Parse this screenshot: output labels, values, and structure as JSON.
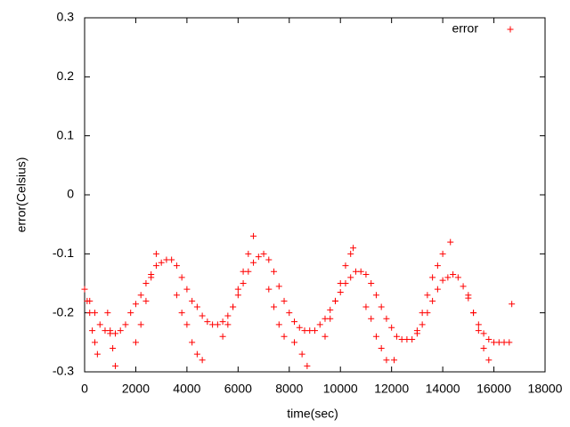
{
  "chart_data": {
    "type": "scatter",
    "xlabel": "time(sec)",
    "ylabel": "error(Celsius)",
    "xlim": [
      0,
      18000
    ],
    "ylim": [
      -0.3,
      0.3
    ],
    "xticks": [
      0,
      2000,
      4000,
      6000,
      8000,
      10000,
      12000,
      14000,
      16000,
      18000
    ],
    "yticks": [
      -0.3,
      -0.2,
      -0.1,
      0,
      0.1,
      0.2,
      0.3
    ],
    "legend": "top-right",
    "x": [
      0,
      200,
      400,
      600,
      800,
      1000,
      1200,
      1400,
      1600,
      1800,
      2000,
      2200,
      2400,
      2600,
      2800,
      3000,
      3200,
      3400,
      3600,
      3800,
      4000,
      4200,
      4400,
      4600,
      4800,
      5000,
      5200,
      5400,
      5600,
      5800,
      6000,
      6200,
      6400,
      6600,
      6800,
      7000,
      7200,
      7400,
      7600,
      7800,
      8000,
      8200,
      8400,
      8600,
      8800,
      9000,
      9200,
      9400,
      9600,
      9800,
      10000,
      10200,
      10400,
      10600,
      10800,
      11000,
      11200,
      11400,
      11600,
      11800,
      12000,
      12200,
      12400,
      12600,
      12800,
      13000,
      13200,
      13400,
      13600,
      13800,
      14000,
      14200,
      14400,
      14600,
      14800,
      15000,
      15200,
      15400,
      15600,
      15800,
      16000,
      16200,
      16400,
      16600,
      100,
      200,
      300,
      400,
      500,
      900,
      1000,
      1100,
      1200,
      2000,
      2200,
      2400,
      2600,
      2800,
      3600,
      3800,
      4000,
      4200,
      4400,
      4600,
      5400,
      5600,
      5800,
      6000,
      6200,
      6400,
      6600,
      7200,
      7400,
      7600,
      7800,
      8200,
      8500,
      8700,
      9400,
      9600,
      9800,
      10000,
      10200,
      10400,
      10500,
      11000,
      11200,
      11400,
      11600,
      11800,
      12100,
      13000,
      13200,
      13400,
      13600,
      13800,
      14000,
      14300,
      15000,
      15200,
      15400,
      15600,
      15800,
      16700
    ],
    "series": [
      {
        "name": "error",
        "color": "#ff0000",
        "values": [
          -0.16,
          -0.18,
          -0.2,
          -0.22,
          -0.23,
          -0.235,
          -0.235,
          -0.23,
          -0.22,
          -0.2,
          -0.185,
          -0.17,
          -0.15,
          -0.135,
          -0.12,
          -0.115,
          -0.11,
          -0.11,
          -0.12,
          -0.14,
          -0.16,
          -0.18,
          -0.19,
          -0.205,
          -0.215,
          -0.22,
          -0.22,
          -0.215,
          -0.205,
          -0.19,
          -0.17,
          -0.15,
          -0.13,
          -0.115,
          -0.105,
          -0.1,
          -0.11,
          -0.13,
          -0.155,
          -0.18,
          -0.2,
          -0.215,
          -0.225,
          -0.23,
          -0.23,
          -0.23,
          -0.22,
          -0.21,
          -0.195,
          -0.18,
          -0.165,
          -0.15,
          -0.14,
          -0.13,
          -0.13,
          -0.135,
          -0.15,
          -0.17,
          -0.19,
          -0.21,
          -0.225,
          -0.24,
          -0.245,
          -0.245,
          -0.245,
          -0.235,
          -0.22,
          -0.2,
          -0.18,
          -0.16,
          -0.145,
          -0.14,
          -0.135,
          -0.14,
          -0.155,
          -0.175,
          -0.2,
          -0.22,
          -0.235,
          -0.245,
          -0.25,
          -0.25,
          -0.25,
          -0.25,
          -0.18,
          -0.2,
          -0.23,
          -0.25,
          -0.27,
          -0.2,
          -0.23,
          -0.26,
          -0.29,
          -0.25,
          -0.22,
          -0.18,
          -0.14,
          -0.1,
          -0.17,
          -0.2,
          -0.22,
          -0.25,
          -0.27,
          -0.28,
          -0.24,
          -0.22,
          -0.19,
          -0.16,
          -0.13,
          -0.1,
          -0.07,
          -0.16,
          -0.19,
          -0.22,
          -0.24,
          -0.25,
          -0.27,
          -0.29,
          -0.24,
          -0.21,
          -0.18,
          -0.15,
          -0.12,
          -0.1,
          -0.09,
          -0.19,
          -0.21,
          -0.24,
          -0.26,
          -0.28,
          -0.28,
          -0.23,
          -0.2,
          -0.17,
          -0.14,
          -0.12,
          -0.1,
          -0.08,
          -0.17,
          -0.2,
          -0.23,
          -0.26,
          -0.28,
          -0.185
        ]
      }
    ]
  }
}
